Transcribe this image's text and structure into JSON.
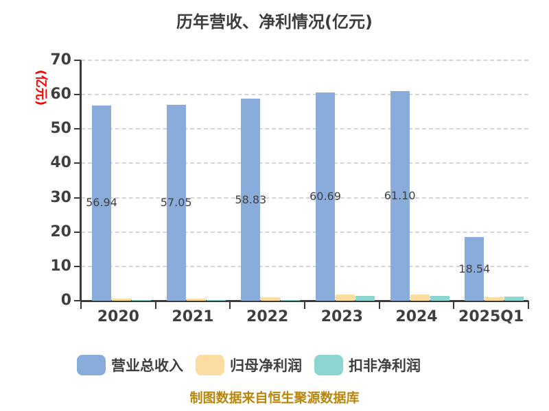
{
  "title": "历年营收、净利情况(亿元)",
  "y_axis_label": "(亿元)",
  "footer_note": "制图数据来自恒生聚源数据库",
  "colors": {
    "revenue_bar": "#8aacdb",
    "net_profit_bar": "#fbdca2",
    "deducted_profit_bar": "#8cd5d0",
    "title_text": "#3c3c3c",
    "axis_text": "#3f3f3f",
    "y_label_text": "#ff0000",
    "footer_text": "#b8860b",
    "gridline": "#d5d5d5",
    "axis_line": "#3a3a3a"
  },
  "chart_data": {
    "type": "bar",
    "title": "历年营收、净利情况(亿元)",
    "ylabel": "(亿元)",
    "xlabel": "",
    "ylim": [
      0,
      70
    ],
    "yticks": [
      0,
      10,
      20,
      30,
      40,
      50,
      60,
      70
    ],
    "grid": true,
    "legend_position": "bottom",
    "categories": [
      "2020",
      "2021",
      "2022",
      "2023",
      "2024",
      "2025Q1"
    ],
    "series": [
      {
        "name": "营业总收入",
        "color": "#8aacdb",
        "values": [
          56.94,
          57.05,
          58.83,
          60.69,
          61.1,
          18.54
        ],
        "labels": [
          "56.94",
          "57.05",
          "58.83",
          "60.69",
          "61.10",
          "18.54"
        ]
      },
      {
        "name": "归母净利润",
        "color": "#fbdca2",
        "values": [
          0.6,
          0.55,
          0.95,
          1.7,
          1.75,
          1.0
        ],
        "labels": null
      },
      {
        "name": "扣非净利润",
        "color": "#8cd5d0",
        "values": [
          0.15,
          0.12,
          0.2,
          1.4,
          1.4,
          1.1
        ],
        "labels": null
      }
    ]
  }
}
